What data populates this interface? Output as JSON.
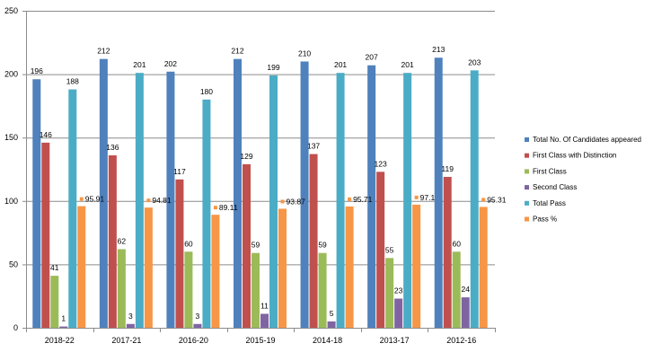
{
  "chart_data": {
    "type": "bar",
    "categories": [
      "2018-22",
      "2017-21",
      "2016-20",
      "2015-19",
      "2014-18",
      "2013-17",
      "2012-16"
    ],
    "ylim": [
      0,
      250
    ],
    "yticks": [
      0,
      50,
      100,
      150,
      200,
      250
    ],
    "grid": true,
    "legend_position": "right",
    "series": [
      {
        "name": "Total No. Of Candidates  appeared",
        "color": "#4f81bd",
        "values": [
          196,
          212,
          202,
          212,
          210,
          207,
          213
        ],
        "labels": [
          "196",
          "212",
          "202",
          "212",
          "210",
          "207",
          "213"
        ]
      },
      {
        "name": "First Class with Distinction",
        "color": "#c0504d",
        "values": [
          146,
          136,
          117,
          129,
          137,
          123,
          119
        ],
        "labels": [
          "146",
          "136",
          "117",
          "129",
          "137",
          "123",
          "119"
        ]
      },
      {
        "name": "First Class",
        "color": "#9bbb59",
        "values": [
          41,
          62,
          60,
          59,
          59,
          55,
          60
        ],
        "labels": [
          "41",
          "62",
          "60",
          "59",
          "59",
          "55",
          "60"
        ]
      },
      {
        "name": "Second Class",
        "color": "#8064a2",
        "values": [
          1,
          3,
          3,
          11,
          5,
          23,
          24
        ],
        "labels": [
          "1",
          "3",
          "3",
          "11",
          "5",
          "23",
          "24"
        ]
      },
      {
        "name": "Total Pass",
        "color": "#4bacc6",
        "values": [
          188,
          201,
          180,
          199,
          201,
          201,
          203
        ],
        "labels": [
          "188",
          "201",
          "180",
          "199",
          "201",
          "201",
          "203"
        ]
      },
      {
        "name": "Pass %",
        "color": "#f79646",
        "values": [
          95.91,
          94.81,
          89.11,
          93.87,
          95.71,
          97.1,
          95.31
        ],
        "labels": [
          "95.91",
          "94.81",
          "89.11",
          "93.87",
          "95.71",
          "97.1",
          "95.31"
        ]
      }
    ]
  }
}
